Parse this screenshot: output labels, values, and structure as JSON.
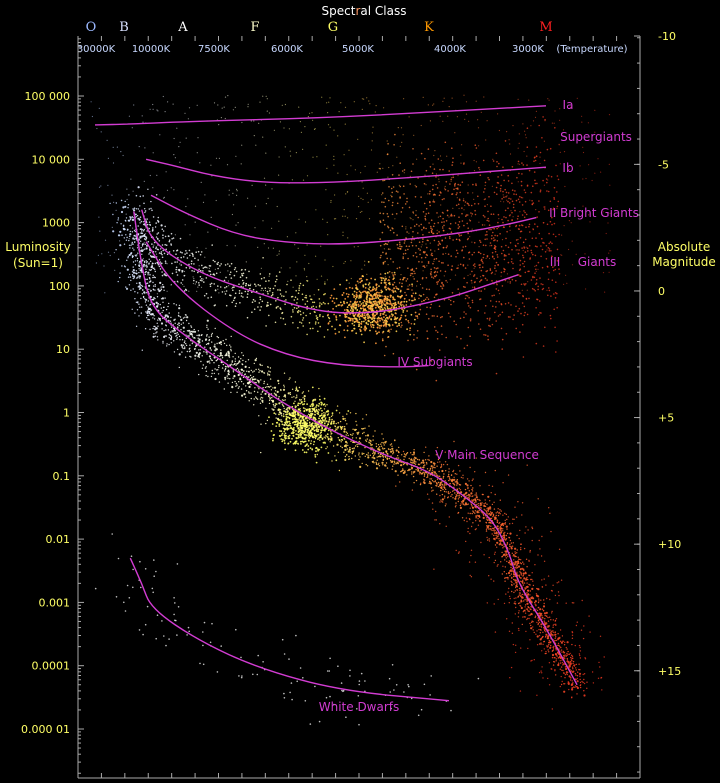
{
  "chart_data": {
    "type": "scatter",
    "title": {
      "parts": [
        {
          "text": "Spect",
          "color": "#ffffff"
        },
        {
          "text": "r",
          "color": "#ff9966"
        },
        {
          "text": "al Class",
          "color": "#ffffff"
        }
      ]
    },
    "spectral_classes": [
      {
        "label": "O",
        "color": "#9bb8ff"
      },
      {
        "label": "B",
        "color": "#d8e0ff"
      },
      {
        "label": "A",
        "color": "#ffffff"
      },
      {
        "label": "F",
        "color": "#ffffcc"
      },
      {
        "label": "G",
        "color": "#ffff66"
      },
      {
        "label": "K",
        "color": "#ff9900"
      },
      {
        "label": "M",
        "color": "#ff2020"
      }
    ],
    "temperature_ticks": [
      "30000K",
      "10000K",
      "7500K",
      "6000K",
      "5000K",
      "4000K",
      "3000K"
    ],
    "temperature_unit_label": "(Temperature)",
    "x_axis": {
      "type": "log-temperature",
      "range": [
        40000,
        2300
      ]
    },
    "luminosity_axis": {
      "title_lines": [
        "Luminosity",
        "(Sun=1)"
      ],
      "type": "log",
      "range": [
        1e-06,
        1000000
      ],
      "tick_values": [
        100000,
        10000,
        1000,
        100,
        10,
        1,
        0.1,
        0.01,
        0.001,
        0.0001,
        1e-05
      ],
      "tick_labels": [
        "100 000",
        "10 000",
        "1000",
        "100",
        "10",
        "1",
        "0.1",
        "0.01",
        "0.001",
        "0.0001",
        "0.000 01"
      ]
    },
    "magnitude_axis": {
      "title_lines": [
        "Absolute",
        "Magnitude"
      ],
      "tick_values": [
        -10,
        -5,
        0,
        5,
        10,
        15
      ],
      "tick_labels": [
        "-10",
        "-5",
        "0",
        "+5",
        "+10",
        "+15"
      ]
    },
    "curves": [
      {
        "label": "Ia",
        "points": [
          [
            30000,
            35000
          ],
          [
            15000,
            36000
          ],
          [
            8000,
            40000
          ],
          [
            5500,
            45000
          ],
          [
            4200,
            55000
          ],
          [
            3200,
            65000
          ],
          [
            2800,
            70000
          ]
        ]
      },
      {
        "label": "Ib",
        "points": [
          [
            11000,
            10000
          ],
          [
            9000,
            8000
          ],
          [
            7500,
            5500
          ],
          [
            6500,
            4300
          ],
          [
            5500,
            4200
          ],
          [
            4500,
            5000
          ],
          [
            3600,
            6200
          ],
          [
            2800,
            7500
          ]
        ]
      },
      {
        "label": "II Bright Giants",
        "points": [
          [
            10000,
            2700
          ],
          [
            8500,
            1400
          ],
          [
            7000,
            650
          ],
          [
            6000,
            480
          ],
          [
            5200,
            450
          ],
          [
            4400,
            540
          ],
          [
            3700,
            720
          ],
          [
            3200,
            950
          ],
          [
            2900,
            1200
          ]
        ]
      },
      {
        "label": "III",
        "points": [
          [
            12000,
            1600
          ],
          [
            10000,
            500
          ],
          [
            8000,
            160
          ],
          [
            6500,
            75
          ],
          [
            5500,
            38
          ],
          [
            4800,
            37
          ],
          [
            4300,
            50
          ],
          [
            3900,
            70
          ],
          [
            3500,
            100
          ],
          [
            3100,
            150
          ]
        ]
      },
      {
        "label": "IV Subgiants",
        "points": [
          [
            11000,
            500
          ],
          [
            9000,
            100
          ],
          [
            7000,
            18
          ],
          [
            6000,
            8
          ],
          [
            5200,
            5.5
          ],
          [
            4500,
            5.2
          ],
          [
            4200,
            5.5
          ]
        ]
      },
      {
        "label": "V Main Sequence",
        "points": [
          [
            14000,
            1500
          ],
          [
            12000,
            200
          ],
          [
            10000,
            45
          ],
          [
            8500,
            16
          ],
          [
            7200,
            6
          ],
          [
            6400,
            2.2
          ],
          [
            5800,
            1
          ],
          [
            5300,
            0.5
          ],
          [
            4700,
            0.22
          ],
          [
            4200,
            0.12
          ],
          [
            3800,
            0.05
          ],
          [
            3400,
            0.02
          ],
          [
            3200,
            0.006
          ],
          [
            3100,
            0.002
          ],
          [
            2800,
            0.0004
          ],
          [
            2500,
            5e-05
          ]
        ]
      },
      {
        "label": "White Dwarfs",
        "points": [
          [
            15000,
            0.005
          ],
          [
            12000,
            0.002
          ],
          [
            10000,
            0.0008
          ],
          [
            8000,
            0.00025
          ],
          [
            6500,
            9e-05
          ],
          [
            5200,
            4e-05
          ],
          [
            4000,
            2.8e-05
          ]
        ]
      }
    ],
    "regions": [
      {
        "name": "main-sequence",
        "color_hot": "#c8e6ff",
        "color_mid": "#ffff88",
        "color_cool": "#ff3a1a"
      },
      {
        "name": "giant-clump",
        "center": [
          4800,
          40
        ],
        "color": "#ffb040"
      },
      {
        "name": "red-giants",
        "color": "#ff5a1a"
      },
      {
        "name": "white-dwarfs",
        "color": "#ffffff"
      }
    ],
    "grid": false,
    "background": "#000000"
  }
}
